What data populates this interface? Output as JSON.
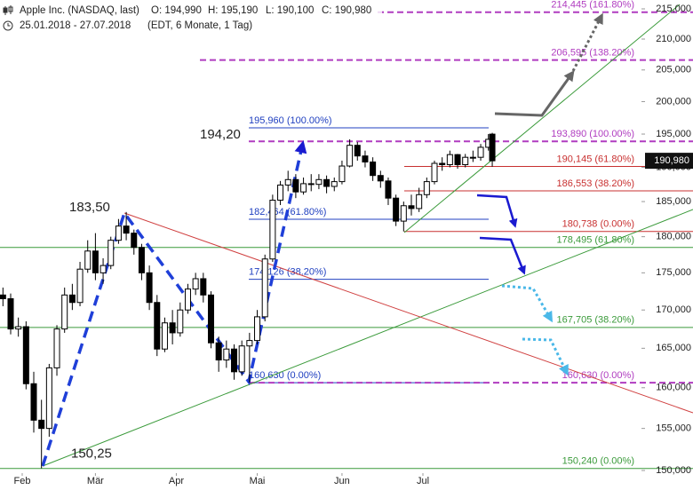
{
  "chart_data": {
    "type": "candlestick",
    "header": {
      "symbol": "Apple Inc. (NASDAQ, last)",
      "open": "O: 194,990",
      "high": "H: 195,190",
      "low": "L: 190,100",
      "close": "C: 190,980",
      "range": "25.01.2018 - 27.07.2018",
      "info": "(EDT, 6 Monate, 1 Tag)"
    },
    "log_scale": true,
    "ylim": [
      150,
      215
    ],
    "yticks": [
      {
        "value": 150,
        "label": "150,000"
      },
      {
        "value": 155,
        "label": "155,000"
      },
      {
        "value": 160,
        "label": "160,000"
      },
      {
        "value": 165,
        "label": "165,000"
      },
      {
        "value": 170,
        "label": "170,000"
      },
      {
        "value": 175,
        "label": "175,000"
      },
      {
        "value": 180,
        "label": "180,000"
      },
      {
        "value": 185,
        "label": "185,000"
      },
      {
        "value": 190,
        "label": "190,000"
      },
      {
        "value": 195,
        "label": "195,000"
      },
      {
        "value": 200,
        "label": "200,000"
      },
      {
        "value": 205,
        "label": "205,000"
      },
      {
        "value": 210,
        "label": "210,000"
      },
      {
        "value": 215,
        "label": "215,000"
      }
    ],
    "xlim": [
      0,
      127
    ],
    "xticks": [
      {
        "value": 5,
        "label": "Feb"
      },
      {
        "value": 24,
        "label": "Mär"
      },
      {
        "value": 45,
        "label": "Apr"
      },
      {
        "value": 66,
        "label": "Mai"
      },
      {
        "value": 88,
        "label": "Jun"
      },
      {
        "value": 109,
        "label": "Jul"
      }
    ],
    "up_color": "#ffffff",
    "down_color": "#000000",
    "candles": [
      {
        "x": 0,
        "o": 172.0,
        "h": 173.0,
        "l": 170.5,
        "c": 171.5
      },
      {
        "x": 2,
        "o": 171.5,
        "h": 172.2,
        "l": 166.8,
        "c": 167.5
      },
      {
        "x": 4,
        "o": 167.5,
        "h": 169.0,
        "l": 166.5,
        "c": 167.8
      },
      {
        "x": 6,
        "o": 167.8,
        "h": 168.5,
        "l": 159.8,
        "c": 160.5
      },
      {
        "x": 8,
        "o": 160.5,
        "h": 162.0,
        "l": 154.5,
        "c": 156.0
      },
      {
        "x": 10,
        "o": 156.0,
        "h": 158.5,
        "l": 150.25,
        "c": 155.0
      },
      {
        "x": 12,
        "o": 155.0,
        "h": 163.0,
        "l": 154.0,
        "c": 162.5
      },
      {
        "x": 14,
        "o": 162.5,
        "h": 168.0,
        "l": 161.5,
        "c": 167.5
      },
      {
        "x": 16,
        "o": 167.5,
        "h": 173.0,
        "l": 167.0,
        "c": 172.0
      },
      {
        "x": 18,
        "o": 172.0,
        "h": 173.5,
        "l": 170.0,
        "c": 171.0
      },
      {
        "x": 20,
        "o": 171.0,
        "h": 176.5,
        "l": 170.5,
        "c": 175.5
      },
      {
        "x": 22,
        "o": 175.5,
        "h": 179.5,
        "l": 175.0,
        "c": 178.0
      },
      {
        "x": 24,
        "o": 178.0,
        "h": 180.5,
        "l": 174.0,
        "c": 175.0
      },
      {
        "x": 26,
        "o": 175.0,
        "h": 177.0,
        "l": 173.5,
        "c": 176.0
      },
      {
        "x": 28,
        "o": 176.0,
        "h": 180.0,
        "l": 175.5,
        "c": 179.5
      },
      {
        "x": 30,
        "o": 179.5,
        "h": 182.5,
        "l": 179.0,
        "c": 181.5
      },
      {
        "x": 32,
        "o": 181.5,
        "h": 183.5,
        "l": 179.5,
        "c": 180.5
      },
      {
        "x": 34,
        "o": 180.5,
        "h": 181.0,
        "l": 177.5,
        "c": 178.5
      },
      {
        "x": 36,
        "o": 178.5,
        "h": 179.0,
        "l": 174.0,
        "c": 175.0
      },
      {
        "x": 38,
        "o": 175.0,
        "h": 176.0,
        "l": 170.0,
        "c": 171.0
      },
      {
        "x": 40,
        "o": 171.0,
        "h": 172.0,
        "l": 164.0,
        "c": 164.9
      },
      {
        "x": 42,
        "o": 164.9,
        "h": 169.0,
        "l": 164.5,
        "c": 168.3
      },
      {
        "x": 44,
        "o": 168.3,
        "h": 170.0,
        "l": 165.5,
        "c": 167.0
      },
      {
        "x": 46,
        "o": 167.0,
        "h": 171.0,
        "l": 166.5,
        "c": 170.0
      },
      {
        "x": 48,
        "o": 170.0,
        "h": 173.5,
        "l": 169.5,
        "c": 172.8
      },
      {
        "x": 50,
        "o": 172.8,
        "h": 175.0,
        "l": 172.0,
        "c": 174.2
      },
      {
        "x": 52,
        "o": 174.2,
        "h": 175.0,
        "l": 171.0,
        "c": 172.0
      },
      {
        "x": 54,
        "o": 172.0,
        "h": 172.5,
        "l": 165.0,
        "c": 165.7
      },
      {
        "x": 56,
        "o": 165.7,
        "h": 166.5,
        "l": 162.0,
        "c": 163.5
      },
      {
        "x": 58,
        "o": 163.5,
        "h": 166.0,
        "l": 162.5,
        "c": 164.9
      },
      {
        "x": 60,
        "o": 164.9,
        "h": 165.5,
        "l": 161.0,
        "c": 162.0
      },
      {
        "x": 62,
        "o": 162.0,
        "h": 166.0,
        "l": 161.5,
        "c": 165.3
      },
      {
        "x": 64,
        "o": 165.3,
        "h": 167.0,
        "l": 160.63,
        "c": 166.0
      },
      {
        "x": 66,
        "o": 166.0,
        "h": 170.0,
        "l": 165.5,
        "c": 169.1
      },
      {
        "x": 68,
        "o": 169.1,
        "h": 177.5,
        "l": 168.5,
        "c": 176.9
      },
      {
        "x": 70,
        "o": 176.9,
        "h": 186.0,
        "l": 176.5,
        "c": 185.2
      },
      {
        "x": 72,
        "o": 185.2,
        "h": 188.0,
        "l": 184.5,
        "c": 187.4
      },
      {
        "x": 74,
        "o": 187.4,
        "h": 189.5,
        "l": 186.5,
        "c": 188.2
      },
      {
        "x": 76,
        "o": 188.2,
        "h": 189.0,
        "l": 185.5,
        "c": 186.4
      },
      {
        "x": 78,
        "o": 186.4,
        "h": 188.5,
        "l": 186.0,
        "c": 187.6
      },
      {
        "x": 80,
        "o": 187.6,
        "h": 189.0,
        "l": 186.5,
        "c": 187.5
      },
      {
        "x": 82,
        "o": 187.5,
        "h": 189.0,
        "l": 186.8,
        "c": 188.2
      },
      {
        "x": 84,
        "o": 188.2,
        "h": 188.8,
        "l": 186.2,
        "c": 187.2
      },
      {
        "x": 86,
        "o": 187.2,
        "h": 188.5,
        "l": 186.5,
        "c": 187.9
      },
      {
        "x": 88,
        "o": 187.9,
        "h": 191.0,
        "l": 187.5,
        "c": 190.2
      },
      {
        "x": 90,
        "o": 190.2,
        "h": 194.2,
        "l": 190.0,
        "c": 193.3
      },
      {
        "x": 92,
        "o": 193.3,
        "h": 193.8,
        "l": 191.0,
        "c": 191.7
      },
      {
        "x": 94,
        "o": 191.7,
        "h": 192.5,
        "l": 190.0,
        "c": 190.8
      },
      {
        "x": 96,
        "o": 190.8,
        "h": 191.5,
        "l": 188.0,
        "c": 188.8
      },
      {
        "x": 98,
        "o": 188.8,
        "h": 189.5,
        "l": 187.0,
        "c": 188.0
      },
      {
        "x": 100,
        "o": 188.0,
        "h": 188.5,
        "l": 184.5,
        "c": 185.5
      },
      {
        "x": 102,
        "o": 185.5,
        "h": 186.0,
        "l": 181.5,
        "c": 182.2
      },
      {
        "x": 104,
        "o": 182.2,
        "h": 185.0,
        "l": 180.738,
        "c": 184.4
      },
      {
        "x": 106,
        "o": 184.4,
        "h": 186.0,
        "l": 183.0,
        "c": 184.0
      },
      {
        "x": 108,
        "o": 184.0,
        "h": 187.0,
        "l": 183.5,
        "c": 186.0
      },
      {
        "x": 110,
        "o": 186.0,
        "h": 188.5,
        "l": 185.5,
        "c": 187.9
      },
      {
        "x": 112,
        "o": 187.9,
        "h": 191.0,
        "l": 187.5,
        "c": 190.6
      },
      {
        "x": 114,
        "o": 190.6,
        "h": 191.5,
        "l": 189.5,
        "c": 190.4
      },
      {
        "x": 116,
        "o": 190.4,
        "h": 192.5,
        "l": 190.0,
        "c": 191.9
      },
      {
        "x": 118,
        "o": 191.9,
        "h": 192.0,
        "l": 189.8,
        "c": 190.4
      },
      {
        "x": 120,
        "o": 190.4,
        "h": 192.0,
        "l": 190.0,
        "c": 191.5
      },
      {
        "x": 122,
        "o": 191.5,
        "h": 192.5,
        "l": 190.8,
        "c": 191.5
      },
      {
        "x": 124,
        "o": 191.5,
        "h": 193.5,
        "l": 191.0,
        "c": 193.0
      },
      {
        "x": 126,
        "o": 193.0,
        "h": 195.0,
        "l": 192.5,
        "c": 194.2
      },
      {
        "x": 127,
        "o": 194.99,
        "h": 195.19,
        "l": 190.1,
        "c": 190.98
      }
    ],
    "last_price": {
      "value": 190.98,
      "label": "190,980"
    },
    "levels": [
      {
        "value": 214.445,
        "label": "214,445 (161.80%)",
        "color": "#b03cc0",
        "dashed": true
      },
      {
        "value": 206.595,
        "label": "206,595 (138.20%)",
        "color": "#b03cc0",
        "dashed": true
      },
      {
        "value": 195.96,
        "label": "195,960 (100.00%)",
        "color": "#2040c0",
        "dashed": false
      },
      {
        "value": 193.89,
        "label": "193,890 (100.00%)",
        "color": "#b03cc0",
        "dashed": true
      },
      {
        "value": 190.145,
        "label": "190,145 (61.80%)",
        "color": "#c83030",
        "dashed": false
      },
      {
        "value": 186.553,
        "label": "186,553 (38.20%)",
        "color": "#c83030",
        "dashed": false
      },
      {
        "value": 182.464,
        "label": "182,464 (61.80%)",
        "color": "#2040c0",
        "dashed": false
      },
      {
        "value": 180.738,
        "label": "180,738 (0.00%)",
        "color": "#c83030",
        "dashed": false
      },
      {
        "value": 178.495,
        "label": "178,495 (61.80%)",
        "color": "#3a9a3a",
        "dashed": false
      },
      {
        "value": 174.126,
        "label": "174,126 (38.20%)",
        "color": "#2040c0",
        "dashed": false
      },
      {
        "value": 167.705,
        "label": "167,705 (38.20%)",
        "color": "#3a9a3a",
        "dashed": false
      },
      {
        "value": 160.63,
        "label": "160,630 (0.00%)",
        "color": "#2040c0",
        "dashed": false
      },
      {
        "value": 160.63,
        "label": "160,630 (0.00%)",
        "color": "#b03cc0",
        "dashed": true
      },
      {
        "value": 150.24,
        "label": "150,240 (0.00%)",
        "color": "#3a9a3a",
        "dashed": false
      }
    ],
    "pivots": [
      {
        "value": 194.2,
        "label": "194,20"
      },
      {
        "value": 183.5,
        "label": "183,50"
      },
      {
        "value": 150.25,
        "label": "150,25"
      }
    ]
  }
}
